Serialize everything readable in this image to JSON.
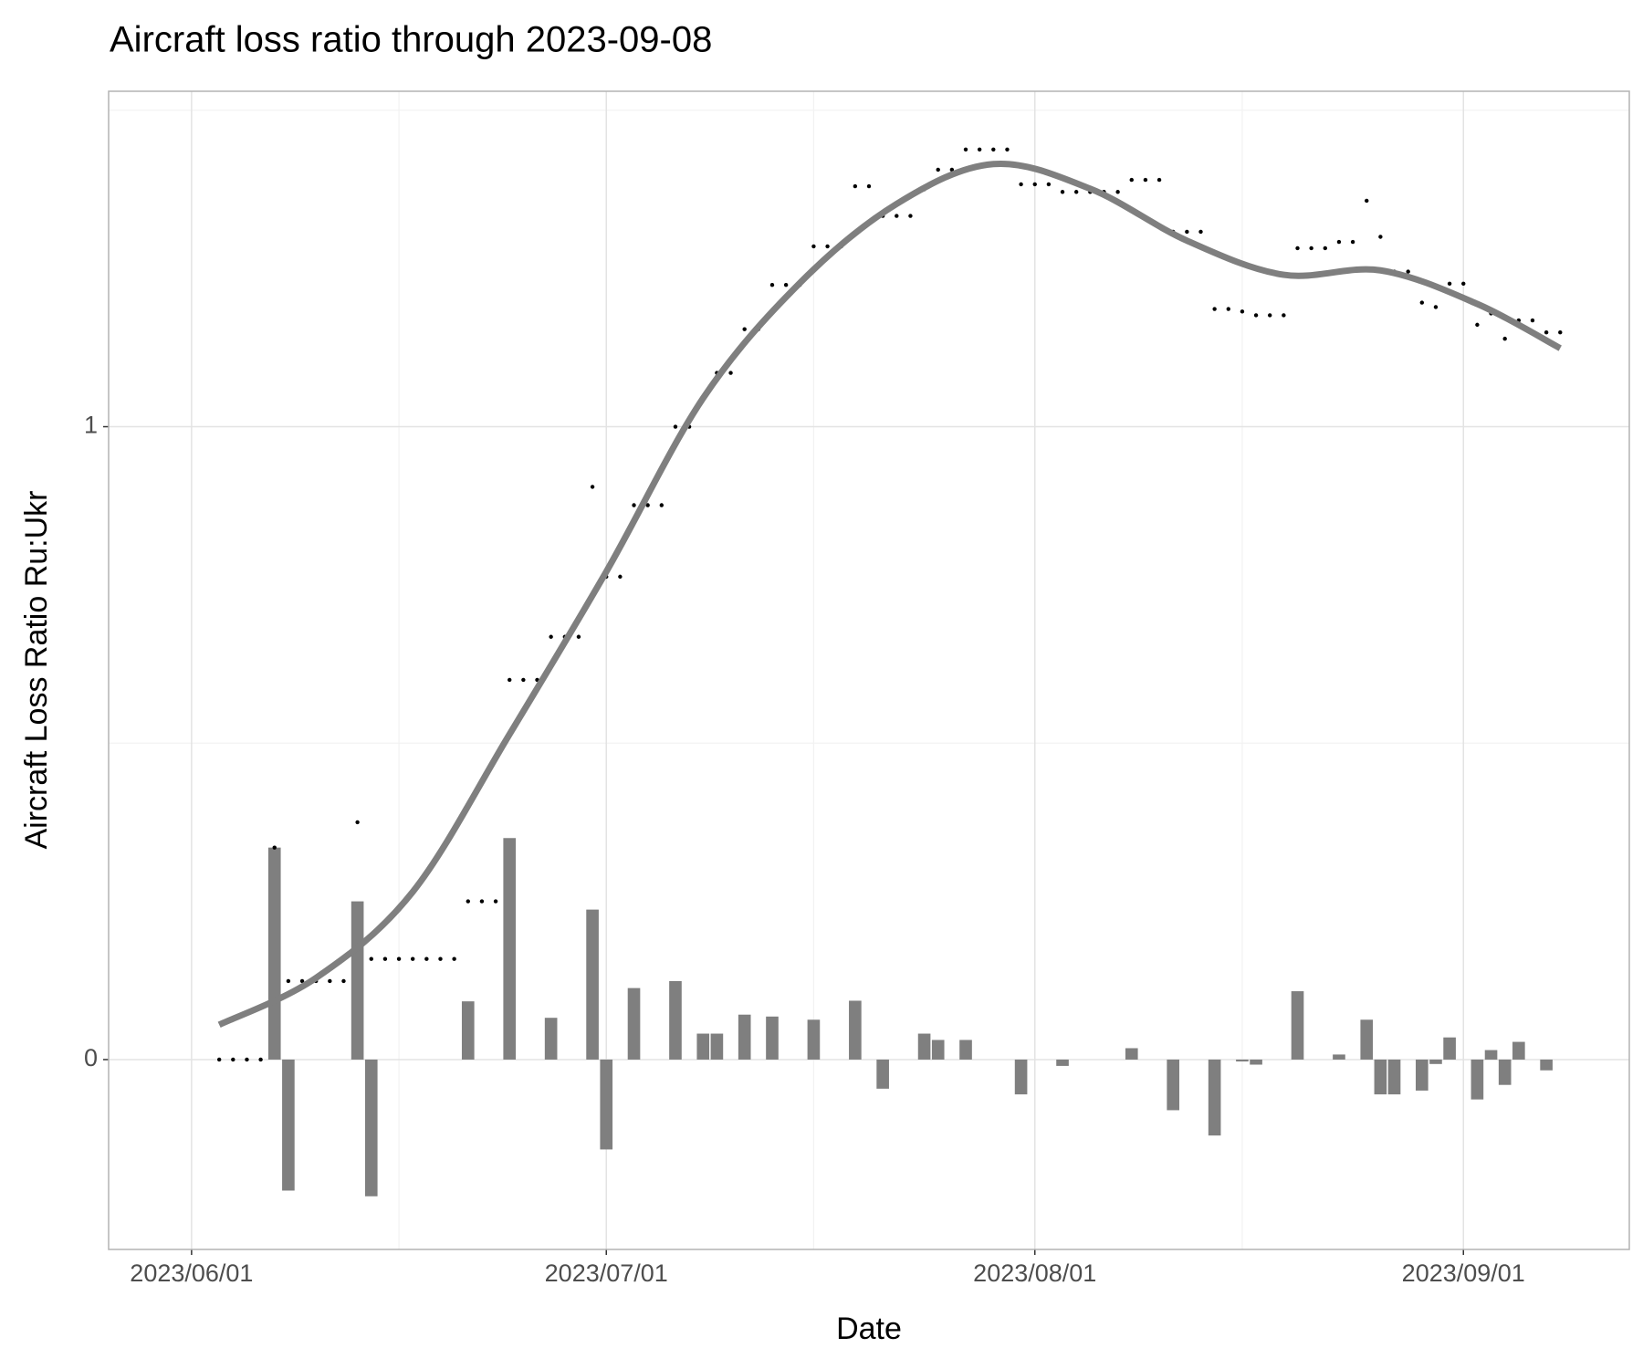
{
  "chart_data": {
    "type": "combo",
    "title": "Aircraft loss ratio through 2023-09-08",
    "x_label": "Date",
    "y_label": "Aircraft Loss Ratio Ru:Ukr",
    "xlim": [
      "2023-05-26",
      "2023-09-13"
    ],
    "ylim": [
      -0.3,
      1.53
    ],
    "xticks": [
      {
        "value": "2023-06-01",
        "label": "2023/06/01"
      },
      {
        "value": "2023-07-01",
        "label": "2023/07/01"
      },
      {
        "value": "2023-08-01",
        "label": "2023/08/01"
      },
      {
        "value": "2023-09-01",
        "label": "2023/09/01"
      }
    ],
    "xminorticks": [
      "2023-06-16",
      "2023-07-16",
      "2023-08-16"
    ],
    "yticks": [
      0,
      1
    ],
    "yminorticks": [
      0.5,
      1.5
    ],
    "grid": true,
    "x": [
      "2023-06-03",
      "2023-06-04",
      "2023-06-05",
      "2023-06-06",
      "2023-06-07",
      "2023-06-08",
      "2023-06-09",
      "2023-06-10",
      "2023-06-11",
      "2023-06-12",
      "2023-06-13",
      "2023-06-14",
      "2023-06-15",
      "2023-06-16",
      "2023-06-17",
      "2023-06-18",
      "2023-06-19",
      "2023-06-20",
      "2023-06-21",
      "2023-06-22",
      "2023-06-23",
      "2023-06-24",
      "2023-06-25",
      "2023-06-26",
      "2023-06-27",
      "2023-06-28",
      "2023-06-29",
      "2023-06-30",
      "2023-07-01",
      "2023-07-02",
      "2023-07-03",
      "2023-07-04",
      "2023-07-05",
      "2023-07-06",
      "2023-07-07",
      "2023-07-08",
      "2023-07-09",
      "2023-07-10",
      "2023-07-11",
      "2023-07-12",
      "2023-07-13",
      "2023-07-14",
      "2023-07-15",
      "2023-07-16",
      "2023-07-17",
      "2023-07-18",
      "2023-07-19",
      "2023-07-20",
      "2023-07-21",
      "2023-07-22",
      "2023-07-23",
      "2023-07-24",
      "2023-07-25",
      "2023-07-26",
      "2023-07-27",
      "2023-07-28",
      "2023-07-29",
      "2023-07-30",
      "2023-07-31",
      "2023-08-01",
      "2023-08-02",
      "2023-08-03",
      "2023-08-04",
      "2023-08-05",
      "2023-08-06",
      "2023-08-07",
      "2023-08-08",
      "2023-08-09",
      "2023-08-10",
      "2023-08-11",
      "2023-08-12",
      "2023-08-13",
      "2023-08-14",
      "2023-08-15",
      "2023-08-16",
      "2023-08-17",
      "2023-08-18",
      "2023-08-19",
      "2023-08-20",
      "2023-08-21",
      "2023-08-22",
      "2023-08-23",
      "2023-08-24",
      "2023-08-25",
      "2023-08-26",
      "2023-08-27",
      "2023-08-28",
      "2023-08-29",
      "2023-08-30",
      "2023-08-31",
      "2023-09-01",
      "2023-09-02",
      "2023-09-03",
      "2023-09-04",
      "2023-09-05",
      "2023-09-06",
      "2023-09-07",
      "2023-09-08"
    ],
    "series": [
      {
        "type": "bar",
        "color": "#7f7f7f",
        "values": [
          null,
          0,
          0,
          0,
          0.335,
          -0.207,
          0,
          0,
          0,
          0,
          0.25,
          -0.216,
          0,
          0,
          0,
          0,
          0,
          0,
          0.092,
          0,
          0,
          0.35,
          0,
          0,
          0.066,
          0,
          0,
          0.237,
          -0.142,
          0,
          0.113,
          0,
          0,
          0.124,
          0,
          0.041,
          0.041,
          0,
          0.071,
          0,
          0.068,
          0,
          0,
          0.063,
          0,
          0,
          0.093,
          0,
          -0.046,
          0,
          0,
          0.041,
          0.031,
          0,
          0.031,
          0,
          0,
          0,
          -0.055,
          0,
          0,
          -0.01,
          0,
          0,
          0,
          0,
          0.018,
          0,
          0,
          -0.08,
          0,
          0,
          -0.12,
          0,
          -0.003,
          -0.008,
          0,
          0,
          0.108,
          0,
          0,
          0.008,
          0,
          0.063,
          -0.055,
          -0.055,
          0,
          -0.049,
          -0.007,
          0.035,
          0,
          -0.063,
          0.015,
          -0.04,
          0.028,
          0,
          -0.017,
          0
        ]
      },
      {
        "type": "scatter",
        "color": "#000000",
        "values": [
          0,
          0,
          0,
          0,
          0.335,
          0.124,
          0.124,
          0.124,
          0.124,
          0.124,
          0.375,
          0.159,
          0.159,
          0.159,
          0.159,
          0.159,
          0.159,
          0.159,
          0.25,
          0.25,
          0.25,
          0.6,
          0.6,
          0.6,
          0.668,
          0.668,
          0.668,
          0.905,
          0.763,
          0.763,
          0.876,
          0.876,
          0.876,
          1.0,
          1.0,
          1.043,
          1.085,
          1.085,
          1.154,
          1.154,
          1.224,
          1.224,
          1.224,
          1.285,
          1.285,
          1.285,
          1.38,
          1.38,
          1.333,
          1.333,
          1.333,
          1.375,
          1.406,
          1.406,
          1.438,
          1.438,
          1.438,
          1.438,
          1.383,
          1.383,
          1.383,
          1.371,
          1.371,
          1.371,
          1.371,
          1.371,
          1.39,
          1.39,
          1.39,
          1.308,
          1.308,
          1.308,
          1.186,
          1.186,
          1.182,
          1.176,
          1.176,
          1.176,
          1.282,
          1.282,
          1.282,
          1.292,
          1.292,
          1.357,
          1.3,
          1.245,
          1.245,
          1.196,
          1.189,
          1.226,
          1.226,
          1.161,
          1.179,
          1.139,
          1.168,
          1.168,
          1.149,
          1.149
        ]
      },
      {
        "type": "line",
        "color": "#7f7f7f",
        "x": [
          "2023-06-03",
          "2023-06-10",
          "2023-06-17",
          "2023-06-24",
          "2023-07-01",
          "2023-07-08",
          "2023-07-15",
          "2023-07-22",
          "2023-07-29",
          "2023-08-05",
          "2023-08-12",
          "2023-08-19",
          "2023-08-26",
          "2023-09-02",
          "2023-09-08"
        ],
        "values": [
          0.055,
          0.129,
          0.265,
          0.514,
          0.771,
          1.045,
          1.227,
          1.352,
          1.415,
          1.376,
          1.294,
          1.24,
          1.247,
          1.194,
          1.124
        ]
      }
    ]
  }
}
